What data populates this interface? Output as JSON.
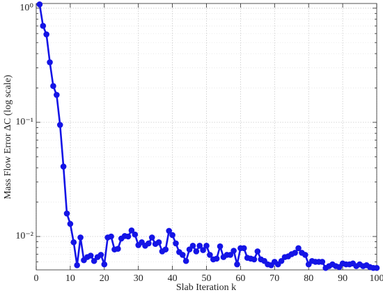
{
  "chart_data": {
    "type": "line",
    "x_label": "Slab Iteration k",
    "y_label": "Mass Flow Error ΔC (log scale)",
    "x": [
      1,
      2,
      3,
      4,
      5,
      6,
      7,
      8,
      9,
      10,
      11,
      12,
      13,
      14,
      15,
      16,
      17,
      18,
      19,
      20,
      21,
      22,
      23,
      24,
      25,
      26,
      27,
      28,
      29,
      30,
      31,
      32,
      33,
      34,
      35,
      36,
      37,
      38,
      39,
      40,
      41,
      42,
      43,
      44,
      45,
      46,
      47,
      48,
      49,
      50,
      51,
      52,
      53,
      54,
      55,
      56,
      57,
      58,
      59,
      60,
      61,
      62,
      63,
      64,
      65,
      66,
      67,
      68,
      69,
      70,
      71,
      72,
      73,
      74,
      75,
      76,
      77,
      78,
      79,
      80,
      81,
      82,
      83,
      84,
      85,
      86,
      87,
      88,
      89,
      90,
      91,
      92,
      93,
      94,
      95,
      96,
      97,
      98,
      99,
      100
    ],
    "series": [
      {
        "color": "#1414e6",
        "values": [
          1.08,
          0.7,
          0.59,
          0.336,
          0.208,
          0.174,
          0.095,
          0.041,
          0.0159,
          0.0129,
          0.0089,
          0.0056,
          0.0098,
          0.0062,
          0.0066,
          0.0068,
          0.0061,
          0.0066,
          0.0069,
          0.0057,
          0.0098,
          0.01,
          0.0077,
          0.0078,
          0.0096,
          0.0101,
          0.01,
          0.0113,
          0.0104,
          0.0084,
          0.0089,
          0.0083,
          0.0087,
          0.0098,
          0.0086,
          0.0089,
          0.0074,
          0.0077,
          0.0112,
          0.0103,
          0.0087,
          0.0073,
          0.0069,
          0.0061,
          0.0077,
          0.0083,
          0.0074,
          0.0083,
          0.0076,
          0.0083,
          0.0069,
          0.0063,
          0.0064,
          0.0082,
          0.0066,
          0.0069,
          0.0069,
          0.0075,
          0.0057,
          0.0079,
          0.0079,
          0.0065,
          0.0064,
          0.0063,
          0.0074,
          0.0063,
          0.0061,
          0.0057,
          0.0056,
          0.006,
          0.0057,
          0.0061,
          0.0066,
          0.0067,
          0.007,
          0.0072,
          0.0079,
          0.0072,
          0.0069,
          0.0057,
          0.0061,
          0.006,
          0.006,
          0.006,
          0.0053,
          0.0055,
          0.0057,
          0.0055,
          0.0054,
          0.0058,
          0.0057,
          0.0057,
          0.0058,
          0.0055,
          0.0057,
          0.0055,
          0.0056,
          0.0054,
          0.0053,
          0.0053
        ]
      }
    ],
    "xlim": [
      0,
      100
    ],
    "xticks": [
      0,
      10,
      20,
      30,
      40,
      50,
      60,
      70,
      80,
      90,
      100
    ],
    "ylim": [
      0.0051,
      1.1
    ],
    "log_y": true,
    "yticks": [
      {
        "value": 0.01,
        "label": "10⁻²"
      },
      {
        "value": 0.1,
        "label": "10⁻¹"
      },
      {
        "value": 1,
        "label": "10⁰"
      }
    ],
    "yminorticks": [
      0.006,
      0.007,
      0.008,
      0.009,
      0.02,
      0.03,
      0.04,
      0.05,
      0.06,
      0.07,
      0.08,
      0.09,
      0.2,
      0.3,
      0.4,
      0.5,
      0.6,
      0.7,
      0.8,
      0.9
    ],
    "grid": true
  }
}
